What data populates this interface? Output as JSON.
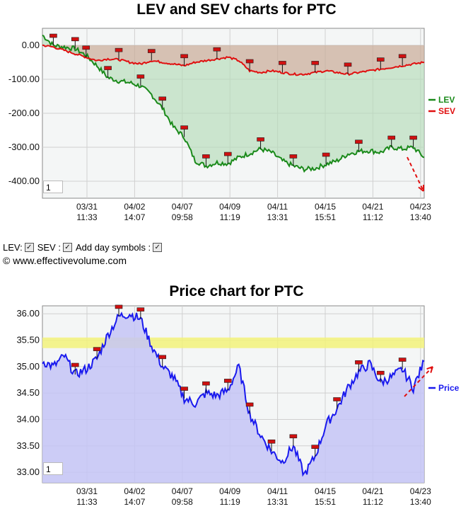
{
  "chart_data": [
    {
      "type": "line",
      "title": "LEV and SEV charts for PTC",
      "ylim": [
        -450,
        50
      ],
      "yticks": [
        "0.00",
        "-100.00",
        "-200.00",
        "-300.00",
        "-400.00"
      ],
      "ytick_values": [
        0,
        -100,
        -200,
        -300,
        -400
      ],
      "x_ticks": [
        {
          "date": "03/31",
          "time": "11:33"
        },
        {
          "date": "04/02",
          "time": "14:07"
        },
        {
          "date": "04/07",
          "time": "09:58"
        },
        {
          "date": "04/09",
          "time": "11:19"
        },
        {
          "date": "04/11",
          "time": "13:31"
        },
        {
          "date": "04/15",
          "time": "15:51"
        },
        {
          "date": "04/21",
          "time": "11:12"
        },
        {
          "date": "04/23",
          "time": "13:40"
        }
      ],
      "legend": "right",
      "grid": true,
      "series": [
        {
          "name": "LEV",
          "color": "#1a8a1a",
          "x": [
            0,
            0.5,
            1,
            1.5,
            2,
            2.5,
            3,
            3.5,
            4,
            4.5,
            5,
            5.5,
            6,
            6.5,
            7,
            7.5,
            8,
            8.5,
            9,
            9.5,
            10,
            10.5,
            11,
            11.5,
            12,
            12.5,
            13,
            13.5,
            14,
            14.5,
            15,
            15.5,
            16,
            16.5,
            17,
            17.5
          ],
          "values": [
            30,
            0,
            -5,
            -10,
            -30,
            -60,
            -95,
            -105,
            -110,
            -120,
            -145,
            -185,
            -240,
            -270,
            -340,
            -355,
            -345,
            -348,
            -330,
            -318,
            -305,
            -315,
            -340,
            -355,
            -365,
            -362,
            -350,
            -340,
            -320,
            -312,
            -310,
            -315,
            -300,
            -305,
            -300,
            -330
          ]
        },
        {
          "name": "SEV",
          "color": "#e01010",
          "x": [
            0,
            0.5,
            1,
            1.5,
            2,
            2.5,
            3,
            3.5,
            4,
            4.5,
            5,
            5.5,
            6,
            6.5,
            7,
            7.5,
            8,
            8.5,
            9,
            9.5,
            10,
            10.5,
            11,
            11.5,
            12,
            12.5,
            13,
            13.5,
            14,
            14.5,
            15,
            15.5,
            16,
            16.5,
            17,
            17.5
          ],
          "values": [
            0,
            -5,
            -15,
            -25,
            -35,
            -45,
            -40,
            -42,
            -50,
            -55,
            -45,
            -50,
            -55,
            -60,
            -50,
            -45,
            -40,
            -35,
            -45,
            -75,
            -80,
            -75,
            -80,
            -85,
            -85,
            -80,
            -75,
            -80,
            -85,
            -80,
            -75,
            -70,
            -65,
            -60,
            -55,
            -50
          ]
        }
      ]
    },
    {
      "type": "line",
      "title": "Price chart for PTC",
      "ylim": [
        32.8,
        36.15
      ],
      "yticks": [
        "36.00",
        "35.50",
        "35.00",
        "34.50",
        "34.00",
        "33.50",
        "33.00"
      ],
      "ytick_values": [
        36.0,
        35.5,
        35.0,
        34.5,
        34.0,
        33.5,
        33.0
      ],
      "x_ticks": [
        {
          "date": "03/31",
          "time": "11:33"
        },
        {
          "date": "04/02",
          "time": "14:07"
        },
        {
          "date": "04/07",
          "time": "09:58"
        },
        {
          "date": "04/09",
          "time": "11:19"
        },
        {
          "date": "04/11",
          "time": "13:31"
        },
        {
          "date": "04/15",
          "time": "15:51"
        },
        {
          "date": "04/21",
          "time": "11:12"
        },
        {
          "date": "04/23",
          "time": "13:40"
        }
      ],
      "legend": "right",
      "grid": true,
      "highlight_band": [
        35.35,
        35.55
      ],
      "series": [
        {
          "name": "Price",
          "color": "#1a1aee",
          "x": [
            0,
            0.5,
            1,
            1.5,
            2,
            2.5,
            3,
            3.5,
            4,
            4.5,
            5,
            5.5,
            6,
            6.5,
            7,
            7.5,
            8,
            8.5,
            9,
            9.5,
            10,
            10.5,
            11,
            11.5,
            12,
            12.5,
            13,
            13.5,
            14,
            14.5,
            15,
            15.5,
            16,
            16.5,
            17,
            17.5
          ],
          "values": [
            35.1,
            35.0,
            35.2,
            34.85,
            34.95,
            35.15,
            35.6,
            35.95,
            36.0,
            35.9,
            35.4,
            35.0,
            34.8,
            34.4,
            34.3,
            34.5,
            34.45,
            34.55,
            35.0,
            34.1,
            33.7,
            33.4,
            33.2,
            33.5,
            32.95,
            33.3,
            33.9,
            34.2,
            34.6,
            34.9,
            35.05,
            34.7,
            34.8,
            34.95,
            34.6,
            35.1
          ]
        }
      ]
    }
  ],
  "controls": {
    "lev_label": "LEV:",
    "sev_label": "SEV :",
    "day_symbols_label": "Add day symbols :",
    "check": "✓"
  },
  "copyright": "© www.effectivevolume.com",
  "page_box_top": "1",
  "page_box_bottom": "1"
}
